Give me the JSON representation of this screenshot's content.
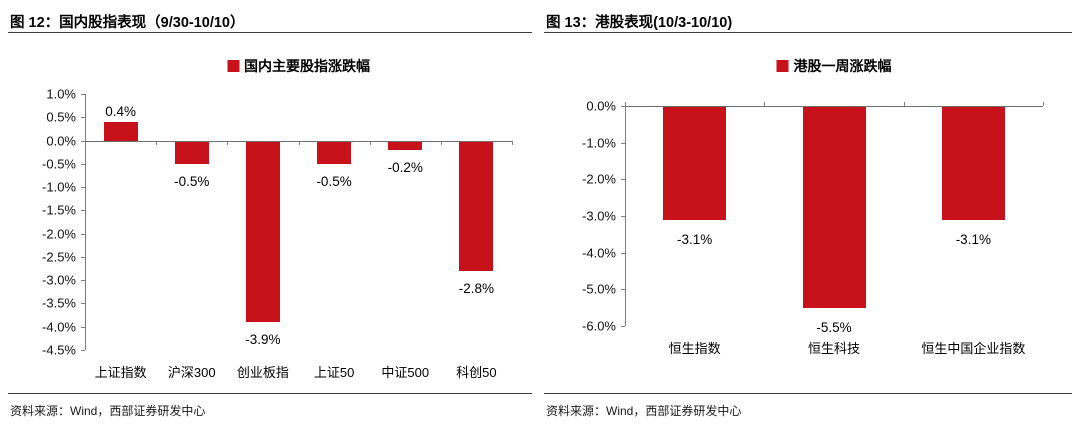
{
  "panels": [
    {
      "title": "图 12：国内股指表现（9/30-10/10）",
      "source": "资料来源：Wind，西部证券研发中心"
    },
    {
      "title": "图 13：港股表现(10/3-10/10)",
      "source": "资料来源：Wind，西部证券研发中心"
    }
  ],
  "colors": {
    "bar": "#C7121C",
    "axis": "#7f7f7f",
    "rule": "#3d3d3d",
    "text": "#000000"
  },
  "chart_data": [
    {
      "type": "bar",
      "title": "国内股指表现（9/30-10/10）",
      "legend": "国内主要股指涨跌幅",
      "legend_position": "top",
      "categories": [
        "上证指数",
        "沪深300",
        "创业板指",
        "上证50",
        "中证500",
        "科创50"
      ],
      "values": [
        0.4,
        -0.5,
        -3.9,
        -0.5,
        -0.2,
        -2.8
      ],
      "data_labels": [
        "0.4%",
        "-0.5%",
        "-3.9%",
        "-0.5%",
        "-0.2%",
        "-2.8%"
      ],
      "ylim": [
        -4.5,
        1.0
      ],
      "ytick_step": 0.5,
      "ytick_labels": [
        "1.0%",
        "0.5%",
        "0.0%",
        "-0.5%",
        "-1.0%",
        "-1.5%",
        "-2.0%",
        "-2.5%",
        "-3.0%",
        "-3.5%",
        "-4.0%",
        "-4.5%"
      ],
      "xlabel": "",
      "ylabel": "",
      "grid": false,
      "bar_color": "#C7121C"
    },
    {
      "type": "bar",
      "title": "港股表现(10/3-10/10)",
      "legend": "港股一周涨跌幅",
      "legend_position": "top",
      "categories": [
        "恒生指数",
        "恒生科技",
        "恒生中国企业指数"
      ],
      "values": [
        -3.1,
        -5.5,
        -3.1
      ],
      "data_labels": [
        "-3.1%",
        "-5.5%",
        "-3.1%"
      ],
      "ylim": [
        -6.0,
        0.0
      ],
      "ytick_step": 1.0,
      "ytick_labels": [
        "0.0%",
        "-1.0%",
        "-2.0%",
        "-3.0%",
        "-4.0%",
        "-5.0%",
        "-6.0%"
      ],
      "xlabel": "",
      "ylabel": "",
      "grid": false,
      "bar_color": "#C7121C"
    }
  ]
}
